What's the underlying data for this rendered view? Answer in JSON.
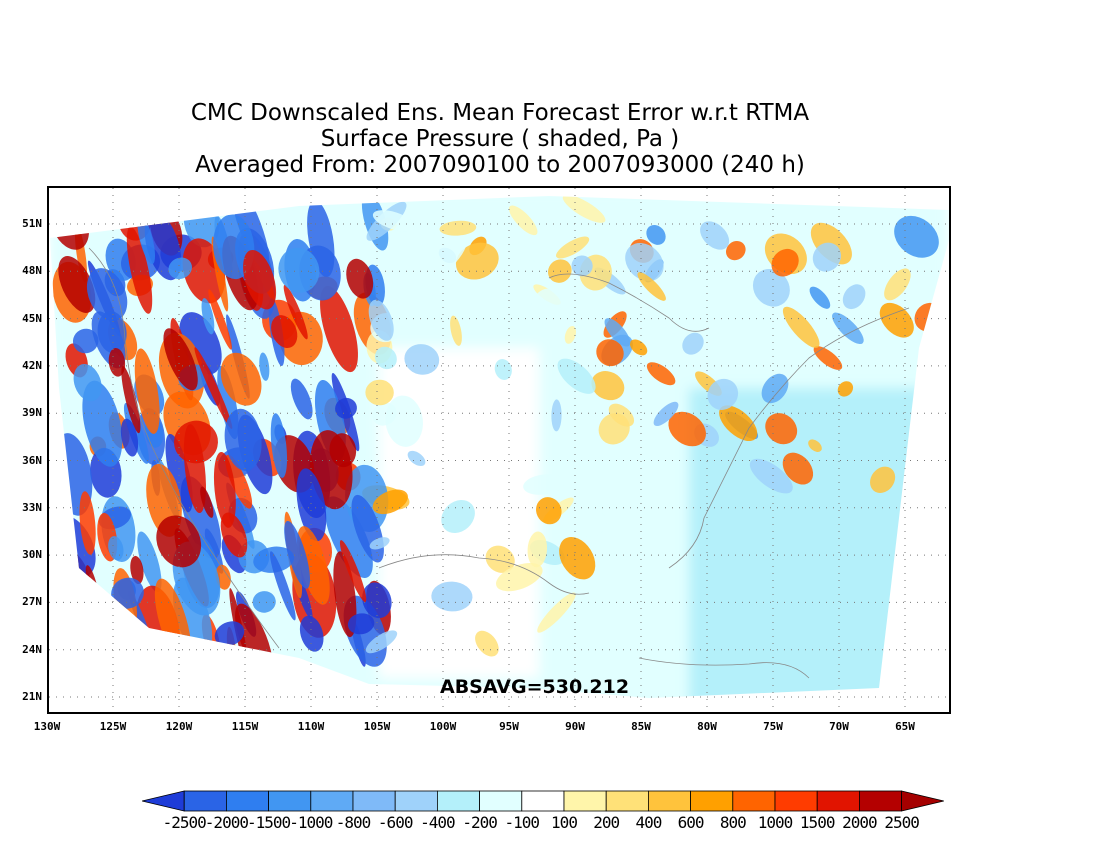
{
  "title": {
    "line1": "CMC Downscaled Ens. Mean Forecast Error w.r.t RTMA",
    "line2": "Surface Pressure ( shaded, Pa )",
    "line3": "Averaged From: 2007090100 to 2007093000 (240 h)"
  },
  "annotation": "ABSAVG=530.212",
  "map": {
    "lat_labels": [
      "51N",
      "48N",
      "45N",
      "42N",
      "39N",
      "36N",
      "33N",
      "30N",
      "27N",
      "24N",
      "21N"
    ],
    "lon_labels": [
      "130W",
      "125W",
      "120W",
      "115W",
      "110W",
      "105W",
      "100W",
      "95W",
      "90W",
      "85W",
      "80W",
      "75W",
      "70W",
      "65W"
    ],
    "grid": "dotted",
    "region": "continental United States"
  },
  "colorbar": {
    "levels": [
      "-2500",
      "-2000",
      "-1500",
      "-1000",
      "-800",
      "-600",
      "-400",
      "-200",
      "-100",
      "100",
      "200",
      "400",
      "600",
      "800",
      "1000",
      "1500",
      "2000",
      "2500"
    ],
    "colors": [
      "#1e3cd8",
      "#2a64e6",
      "#2f7ef0",
      "#4196f2",
      "#5faaf5",
      "#7fbaf8",
      "#9fd2fa",
      "#b4f0fa",
      "#e1ffff",
      "#ffffff",
      "#fff5aa",
      "#ffe178",
      "#ffc33c",
      "#ffa000",
      "#ff6400",
      "#ff3c00",
      "#e11400",
      "#b40000",
      "#a50000"
    ]
  }
}
